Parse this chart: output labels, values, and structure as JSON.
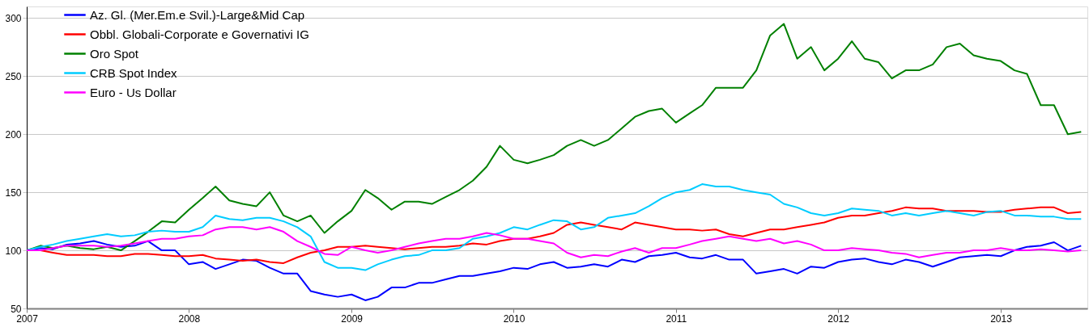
{
  "chart_data": {
    "type": "line",
    "x": [
      "2007-01",
      "2007-02",
      "2007-03",
      "2007-04",
      "2007-05",
      "2007-06",
      "2007-07",
      "2007-08",
      "2007-09",
      "2007-10",
      "2007-11",
      "2007-12",
      "2008-01",
      "2008-02",
      "2008-03",
      "2008-04",
      "2008-05",
      "2008-06",
      "2008-07",
      "2008-08",
      "2008-09",
      "2008-10",
      "2008-11",
      "2008-12",
      "2009-01",
      "2009-02",
      "2009-03",
      "2009-04",
      "2009-05",
      "2009-06",
      "2009-07",
      "2009-08",
      "2009-09",
      "2009-10",
      "2009-11",
      "2009-12",
      "2010-01",
      "2010-02",
      "2010-03",
      "2010-04",
      "2010-05",
      "2010-06",
      "2010-07",
      "2010-08",
      "2010-09",
      "2010-10",
      "2010-11",
      "2010-12",
      "2011-01",
      "2011-02",
      "2011-03",
      "2011-04",
      "2011-05",
      "2011-06",
      "2011-07",
      "2011-08",
      "2011-09",
      "2011-10",
      "2011-11",
      "2011-12",
      "2012-01",
      "2012-02",
      "2012-03",
      "2012-04",
      "2012-05",
      "2012-06",
      "2012-07",
      "2012-08",
      "2012-09",
      "2012-10",
      "2012-11",
      "2012-12",
      "2013-01",
      "2013-02",
      "2013-03",
      "2013-04",
      "2013-05",
      "2013-06",
      "2013-07"
    ],
    "series": [
      {
        "name": "Az. Gl. (Mer.Em.e Svil.)-Large&Mid Cap",
        "color": "#0000ff",
        "values": [
          100,
          102,
          101,
          105,
          106,
          108,
          105,
          103,
          104,
          108,
          100,
          100,
          88,
          90,
          84,
          88,
          92,
          91,
          85,
          80,
          80,
          65,
          62,
          60,
          62,
          57,
          60,
          68,
          68,
          72,
          72,
          75,
          78,
          78,
          80,
          82,
          85,
          84,
          88,
          90,
          85,
          86,
          88,
          86,
          92,
          90,
          95,
          96,
          98,
          94,
          93,
          96,
          92,
          92,
          80,
          82,
          84,
          80,
          86,
          85,
          90,
          92,
          93,
          90,
          88,
          92,
          90,
          86,
          90,
          94,
          95,
          96,
          95,
          100,
          103,
          104,
          107,
          100,
          104
        ]
      },
      {
        "name": "Obbl. Globali-Corporate e Governativi IG",
        "color": "#ff0000",
        "values": [
          100,
          100,
          98,
          96,
          96,
          96,
          95,
          95,
          97,
          97,
          96,
          95,
          95,
          96,
          93,
          92,
          91,
          92,
          90,
          89,
          94,
          98,
          100,
          103,
          103,
          104,
          103,
          102,
          101,
          102,
          103,
          103,
          104,
          106,
          105,
          108,
          110,
          110,
          112,
          115,
          122,
          124,
          122,
          120,
          118,
          124,
          122,
          120,
          118,
          118,
          117,
          118,
          114,
          112,
          115,
          118,
          118,
          120,
          122,
          124,
          128,
          130,
          130,
          132,
          134,
          137,
          136,
          136,
          134,
          134,
          134,
          133,
          133,
          135,
          136,
          137,
          137,
          132,
          133
        ]
      },
      {
        "name": "Oro Spot",
        "color": "#008000",
        "values": [
          100,
          104,
          102,
          104,
          102,
          101,
          103,
          100,
          108,
          116,
          125,
          124,
          135,
          145,
          155,
          143,
          140,
          138,
          150,
          130,
          125,
          130,
          115,
          125,
          134,
          152,
          145,
          135,
          142,
          142,
          140,
          146,
          152,
          160,
          172,
          190,
          178,
          175,
          178,
          182,
          190,
          195,
          190,
          195,
          205,
          215,
          220,
          222,
          210,
          218,
          225,
          240,
          240,
          240,
          255,
          285,
          295,
          265,
          275,
          255,
          265,
          280,
          265,
          262,
          248,
          255,
          255,
          260,
          275,
          278,
          268,
          265,
          263,
          255,
          252,
          225,
          225,
          200,
          202
        ]
      },
      {
        "name": "CRB Spot Index",
        "color": "#00ccff",
        "values": [
          100,
          103,
          105,
          108,
          110,
          112,
          114,
          112,
          113,
          116,
          117,
          116,
          116,
          120,
          130,
          127,
          126,
          128,
          128,
          125,
          120,
          112,
          90,
          85,
          85,
          83,
          88,
          92,
          95,
          96,
          100,
          100,
          102,
          110,
          112,
          115,
          120,
          118,
          122,
          126,
          125,
          118,
          120,
          128,
          130,
          132,
          138,
          145,
          150,
          152,
          157,
          155,
          155,
          152,
          150,
          148,
          140,
          137,
          132,
          130,
          132,
          136,
          135,
          134,
          130,
          132,
          130,
          132,
          134,
          132,
          130,
          133,
          134,
          130,
          130,
          129,
          129,
          127,
          127
        ]
      },
      {
        "name": "Euro - Us Dollar",
        "color": "#ff00ff",
        "values": [
          100,
          100,
          102,
          104,
          104,
          104,
          103,
          104,
          106,
          108,
          110,
          110,
          112,
          113,
          118,
          120,
          120,
          118,
          120,
          116,
          108,
          103,
          97,
          96,
          103,
          100,
          98,
          100,
          103,
          106,
          108,
          110,
          110,
          112,
          115,
          113,
          110,
          110,
          108,
          106,
          98,
          94,
          96,
          95,
          99,
          102,
          98,
          102,
          102,
          105,
          108,
          110,
          112,
          110,
          108,
          110,
          106,
          108,
          105,
          100,
          100,
          102,
          101,
          100,
          98,
          97,
          94,
          96,
          98,
          98,
          100,
          100,
          102,
          100,
          100,
          101,
          100,
          99,
          100
        ]
      }
    ],
    "xlim": [
      "2007-01-01",
      "2013-07-15"
    ],
    "xticks": [
      "2007",
      "2008",
      "2009",
      "2010",
      "2011",
      "2012",
      "2013"
    ],
    "ylim": [
      50,
      310
    ],
    "yticks": [
      50,
      100,
      150,
      200,
      250,
      300
    ],
    "grid": "y",
    "legend": "top left",
    "marker": "none",
    "line_style": "solid"
  }
}
